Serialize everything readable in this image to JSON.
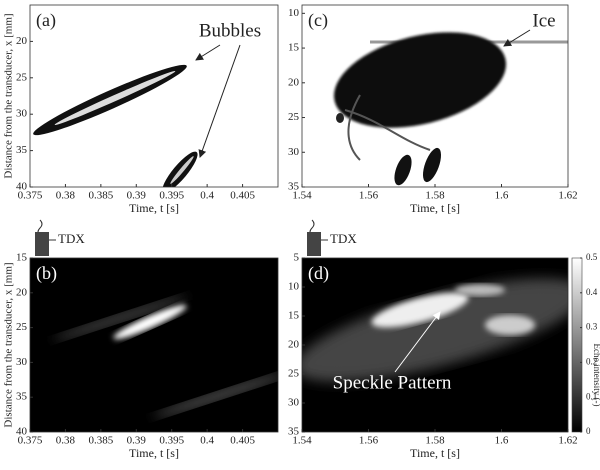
{
  "chart_data": [
    {
      "type": "image",
      "label": "(a)",
      "xlabel": "Time, t [s]",
      "ylabel": "Distance from the transducer, x [mm]",
      "xlim": [
        0.375,
        0.41
      ],
      "xticks": [
        0.375,
        0.38,
        0.385,
        0.39,
        0.395,
        0.4,
        0.405
      ],
      "ylim": [
        15,
        40
      ],
      "yticks": [
        20,
        25,
        30,
        35,
        40
      ],
      "y_inverted": true,
      "annotations": [
        "Bubbles"
      ]
    },
    {
      "type": "image",
      "label": "(b)",
      "xlabel": "Time, t [s]",
      "ylabel": "Distance from the transducer, x [mm]",
      "xlim": [
        0.375,
        0.41
      ],
      "xticks": [
        0.375,
        0.38,
        0.385,
        0.39,
        0.395,
        0.4,
        0.405
      ],
      "ylim": [
        15,
        40
      ],
      "yticks": [
        15,
        20,
        25,
        30,
        35,
        40
      ],
      "y_inverted": true,
      "annotations": [
        "TDX"
      ]
    },
    {
      "type": "image",
      "label": "(c)",
      "xlabel": "Time, t [s]",
      "xlim": [
        1.54,
        1.62
      ],
      "xticks": [
        1.54,
        1.56,
        1.58,
        1.6,
        1.62
      ],
      "ylim": [
        8.8,
        35
      ],
      "yticks": [
        10,
        15,
        20,
        25,
        30,
        35
      ],
      "y_inverted": true,
      "annotations": [
        "Ice"
      ]
    },
    {
      "type": "image",
      "label": "(d)",
      "xlabel": "Time, t [s]",
      "xlim": [
        1.54,
        1.62
      ],
      "xticks": [
        1.54,
        1.56,
        1.58,
        1.6,
        1.62
      ],
      "ylim": [
        5,
        35
      ],
      "yticks": [
        5,
        10,
        15,
        20,
        25,
        30,
        35
      ],
      "y_inverted": true,
      "annotations": [
        "TDX",
        "Speckle Pattern"
      ],
      "colorbar": {
        "label": "Echo intensity (-)",
        "lim": [
          0,
          0.5
        ],
        "ticks": [
          0,
          0.1,
          0.2,
          0.3,
          0.4,
          0.5
        ]
      }
    }
  ]
}
